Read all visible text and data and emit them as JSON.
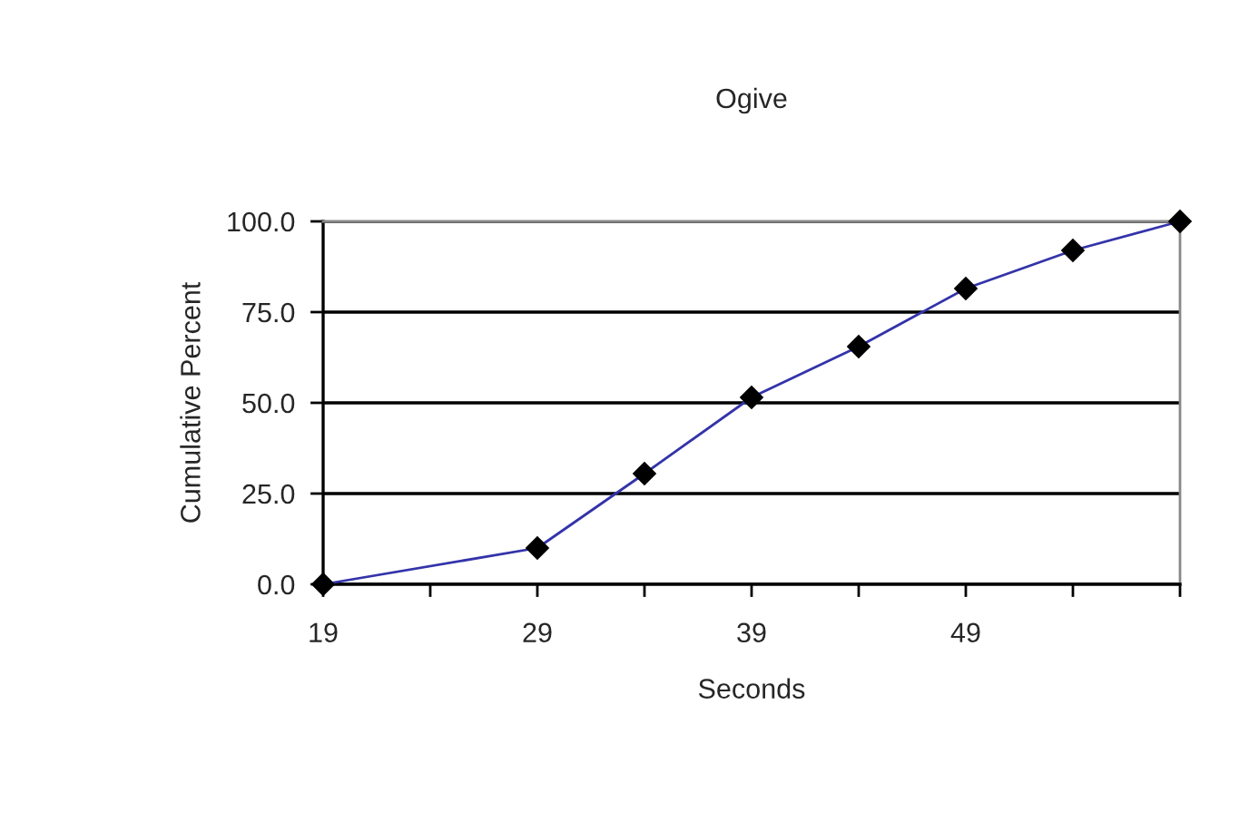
{
  "chart_data": {
    "type": "line",
    "title": "Ogive",
    "xlabel": "Seconds",
    "ylabel": "Cumulative Percent",
    "x": [
      19,
      29,
      34,
      39,
      44,
      49,
      54,
      59
    ],
    "series": [
      {
        "color": "#3333aa",
        "values": [
          0.0,
          10.0,
          30.5,
          51.5,
          65.5,
          81.5,
          92.0,
          100.0
        ]
      }
    ],
    "marker": "diamond",
    "line_style": "solid",
    "xlim": [
      19,
      59
    ],
    "xticks": [
      19,
      {
        "value": 24,
        "label": null
      },
      29,
      {
        "value": 34,
        "label": null
      },
      39,
      {
        "value": 44,
        "label": null
      },
      49,
      {
        "value": 54,
        "label": null
      },
      {
        "value": 59,
        "label": null
      }
    ],
    "ylim": [
      0,
      100
    ],
    "yticks": [
      {
        "value": 0,
        "label": "0.0"
      },
      {
        "value": 25,
        "label": "25.0"
      },
      {
        "value": 50,
        "label": "50.0"
      },
      {
        "value": 75,
        "label": "75.0"
      },
      {
        "value": 100,
        "label": "100.0"
      }
    ],
    "grid": "y",
    "legend": false
  }
}
